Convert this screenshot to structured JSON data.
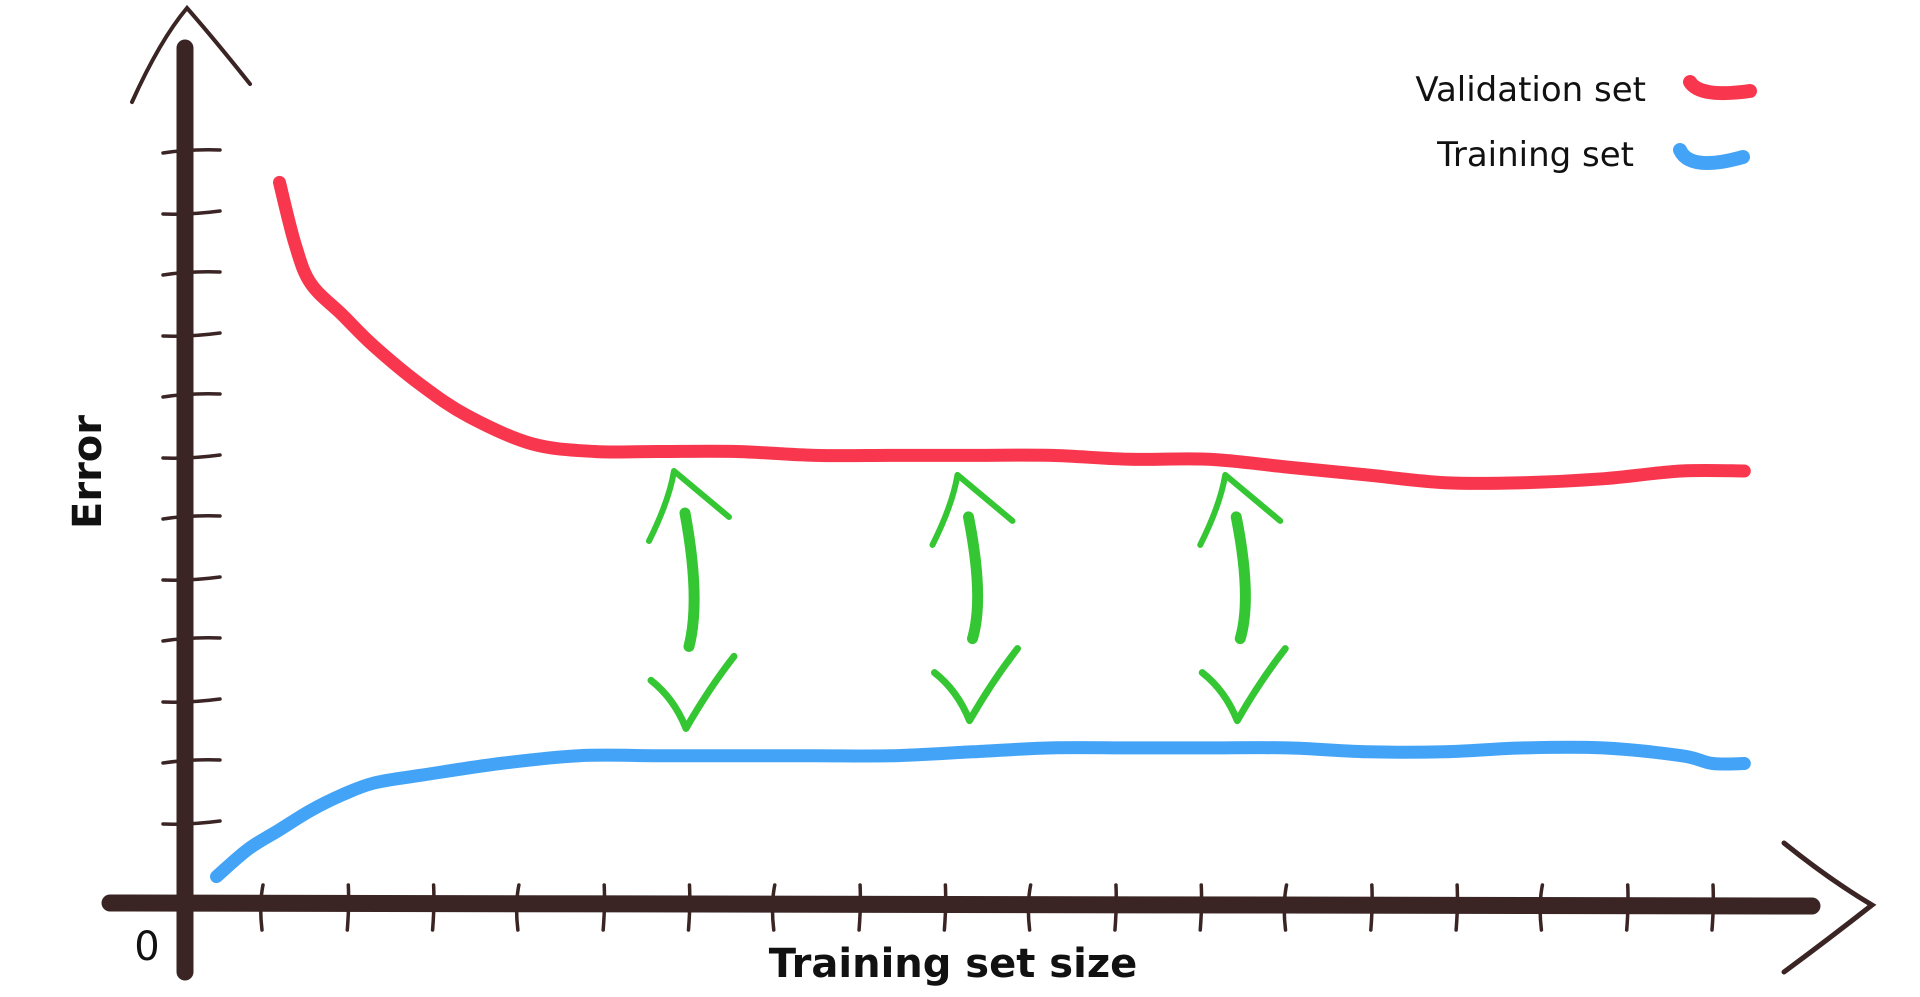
{
  "chart_data": {
    "type": "line",
    "title": "",
    "xlabel": "Training set size",
    "ylabel": "Error",
    "origin_label": "0",
    "xlim": [
      0,
      100
    ],
    "ylim": [
      0,
      100
    ],
    "legend_position": "top-right",
    "series": [
      {
        "name": "Validation set",
        "color": "#f8374f",
        "x": [
          6,
          7,
          8,
          10,
          12,
          15,
          18,
          22,
          26,
          30,
          35,
          40,
          45,
          50,
          55,
          60,
          65,
          70,
          75,
          80,
          85,
          90,
          95,
          99
        ],
        "y": [
          92,
          84,
          79,
          75,
          71,
          66,
          62,
          58.5,
          57.5,
          57.5,
          57.5,
          57,
          57,
          57,
          57,
          56.5,
          56.5,
          55.5,
          54.5,
          53.5,
          53.5,
          54,
          55,
          55
        ]
      },
      {
        "name": "Training set",
        "color": "#43a3f6",
        "x": [
          2,
          4,
          6,
          8,
          10,
          12,
          15,
          20,
          25,
          30,
          35,
          40,
          45,
          50,
          55,
          60,
          65,
          70,
          75,
          80,
          85,
          90,
          95,
          97,
          99
        ],
        "y": [
          3,
          6.5,
          9,
          11.5,
          13.5,
          15,
          16,
          17.5,
          18.5,
          18.5,
          18.5,
          18.5,
          18.5,
          19,
          19.5,
          19.5,
          19.5,
          19.5,
          19,
          19,
          19.5,
          19.5,
          18.5,
          17.5,
          17.5
        ]
      }
    ],
    "annotations": [
      {
        "type": "double-arrow",
        "color": "#35c733",
        "x": 32,
        "y_top": 55,
        "y_bottom": 22
      },
      {
        "type": "double-arrow",
        "color": "#35c733",
        "x": 50,
        "y_top": 54.5,
        "y_bottom": 23
      },
      {
        "type": "double-arrow",
        "color": "#35c733",
        "x": 67,
        "y_top": 54.5,
        "y_bottom": 23
      }
    ],
    "x_tick_count": 18,
    "y_tick_count": 12,
    "grid": false,
    "axis_color": "#3a2424"
  }
}
